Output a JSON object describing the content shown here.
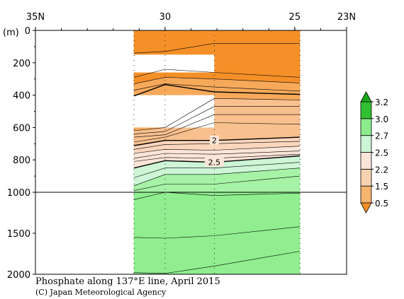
{
  "chart_data": {
    "type": "heatmap",
    "title": "Phosphate along 137°E line, April 2015",
    "credit": "(C) Japan Meteorological Agency",
    "x_axis": {
      "ticks": [
        {
          "lat": 35,
          "label": "35N"
        },
        {
          "lat": 30,
          "label": "30"
        },
        {
          "lat": 25,
          "label": "25"
        },
        {
          "lat": 23,
          "label": "23N"
        }
      ]
    },
    "y_axis": {
      "unit_label": "(m)",
      "ticks": [
        {
          "depth": 0,
          "label": "0"
        },
        {
          "depth": 200,
          "label": "200"
        },
        {
          "depth": 400,
          "label": "400"
        },
        {
          "depth": 600,
          "label": "600"
        },
        {
          "depth": 800,
          "label": "800"
        },
        {
          "depth": 1000,
          "label": "1000"
        },
        {
          "depth": 1500,
          "label": "1500"
        },
        {
          "depth": 2000,
          "label": "2000"
        }
      ],
      "scale_break_depth": 1000
    },
    "colorbar": {
      "levels": [
        "0.5",
        "1.5",
        "2.2",
        "2.5",
        "2.7",
        "3.0",
        "3.2"
      ],
      "colors": [
        "#f59028",
        "#f6b46e",
        "#f8d2b0",
        "#fbe5d8",
        "#cdf5d6",
        "#8cec8c",
        "#31c031",
        "#18a818"
      ]
    },
    "data_extent": {
      "lat_north": 31.2,
      "lat_south": 24.8,
      "max_depth": 2000
    },
    "stations_lat": [
      31.2,
      30,
      28.1,
      24.8
    ],
    "contour_labels": [
      {
        "text": "2",
        "lat": 28.1,
        "depth": 680
      },
      {
        "text": "2.5",
        "lat": 28.1,
        "depth": 815
      }
    ],
    "contour_lines": [
      {
        "level": "0.5",
        "depths": [
          140,
          130,
          80,
          80
        ],
        "bold": false
      },
      {
        "level": "0.9",
        "depths": [
          290,
          240,
          260,
          290
        ],
        "bold": false
      },
      {
        "level": "1.1",
        "depths": [
          330,
          290,
          300,
          325
        ],
        "bold": false
      },
      {
        "level": "1.3",
        "depths": [
          370,
          330,
          350,
          375
        ],
        "bold": false
      },
      {
        "level": "1.5",
        "depths": [
          405,
          335,
          380,
          395
        ],
        "bold": true
      },
      {
        "level": "1.6",
        "depths": [
          620,
          600,
          420,
          430
        ],
        "bold": false
      },
      {
        "level": "1.7",
        "depths": [
          640,
          625,
          470,
          470
        ],
        "bold": false
      },
      {
        "level": "1.8",
        "depths": [
          660,
          645,
          520,
          520
        ],
        "bold": false
      },
      {
        "level": "1.9",
        "depths": [
          690,
          660,
          570,
          580
        ],
        "bold": false
      },
      {
        "level": "2.0",
        "depths": [
          712,
          680,
          680,
          660
        ],
        "bold": true
      },
      {
        "level": "2.1",
        "depths": [
          735,
          705,
          700,
          685
        ],
        "bold": false
      },
      {
        "level": "2.2",
        "depths": [
          760,
          735,
          740,
          715
        ],
        "bold": false
      },
      {
        "level": "2.3",
        "depths": [
          790,
          760,
          765,
          745
        ],
        "bold": false
      },
      {
        "level": "2.4",
        "depths": [
          810,
          785,
          790,
          765
        ],
        "bold": false
      },
      {
        "level": "2.5",
        "depths": [
          850,
          805,
          815,
          775
        ],
        "bold": true
      },
      {
        "level": "2.6",
        "depths": [
          910,
          850,
          850,
          815
        ],
        "bold": false
      },
      {
        "level": "2.7",
        "depths": [
          960,
          890,
          890,
          850
        ],
        "bold": false
      },
      {
        "level": "2.8",
        "depths": [
          990,
          950,
          950,
          900
        ],
        "bold": false
      },
      {
        "level": "2.9",
        "depths": [
          1090,
          1000,
          1040,
          1010
        ],
        "bold": false
      },
      {
        "level": "3.0",
        "depths": [
          1550,
          1560,
          1530,
          1420
        ],
        "bold": false
      },
      {
        "level": "3.1",
        "depths": [
          1980,
          1990,
          1900,
          1720
        ],
        "bold": false
      }
    ],
    "colored_bands": [
      {
        "color": "#f59028",
        "top": [
          0,
          0,
          0,
          0
        ],
        "bottom": [
          140,
          130,
          80,
          80
        ]
      },
      {
        "color": "#f59028",
        "top": [
          140,
          130,
          80,
          80
        ],
        "bottom": [
          330,
          290,
          300,
          325
        ]
      },
      {
        "color": "#f7a95a",
        "top": [
          330,
          290,
          300,
          325
        ],
        "bottom": [
          405,
          335,
          380,
          395
        ]
      },
      {
        "color": "#f7a95a",
        "top": [
          405,
          335,
          380,
          395
        ],
        "bottom": [
          620,
          600,
          420,
          430
        ]
      },
      {
        "color": "#f8c08e",
        "top": [
          620,
          600,
          420,
          430
        ],
        "bottom": [
          712,
          680,
          680,
          660
        ]
      },
      {
        "color": "#fad6bc",
        "top": [
          712,
          680,
          680,
          660
        ],
        "bottom": [
          760,
          735,
          740,
          715
        ]
      },
      {
        "color": "#fbe5d8",
        "top": [
          760,
          735,
          740,
          715
        ],
        "bottom": [
          850,
          805,
          815,
          775
        ]
      },
      {
        "color": "#cdf5d6",
        "top": [
          850,
          805,
          815,
          775
        ],
        "bottom": [
          960,
          890,
          890,
          850
        ]
      },
      {
        "color": "#a6f2a6",
        "top": [
          960,
          890,
          890,
          850
        ],
        "bottom": [
          1000,
          1000,
          1000,
          1000
        ]
      },
      {
        "color": "#90ee90",
        "top": [
          1000,
          1000,
          1000,
          1000
        ],
        "bottom": [
          2000,
          2000,
          2000,
          2000
        ]
      }
    ],
    "missing_data": [
      {
        "lat_north": 31.2,
        "lat_south": 28.1,
        "depth_top": 150,
        "depth_bottom": 260
      },
      {
        "lat_north": 31.2,
        "lat_south": 28.1,
        "depth_top": 400,
        "depth_bottom": 600
      }
    ]
  }
}
